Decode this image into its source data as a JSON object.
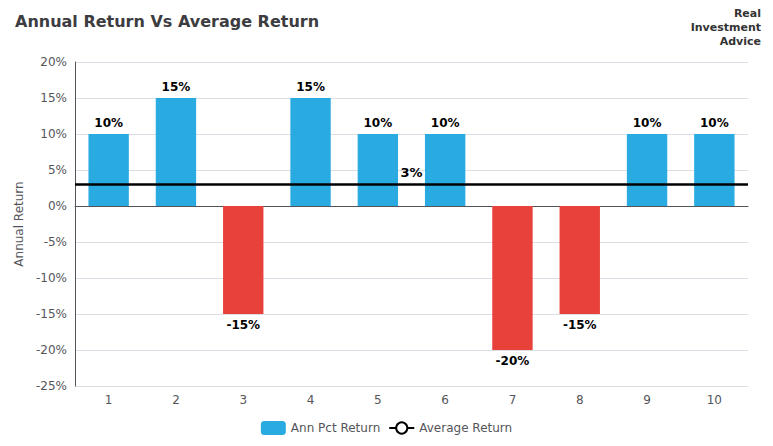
{
  "chart_data": {
    "type": "bar",
    "title": "Annual Return Vs Average Return",
    "ylabel": "Annual Return",
    "categories": [
      1,
      2,
      3,
      4,
      5,
      6,
      7,
      8,
      9,
      10
    ],
    "series": [
      {
        "name": "Ann Pct Return",
        "type": "bar",
        "color": "#29ABE2",
        "colors": [
          "#29ABE2",
          "#29ABE2",
          "#E8413A",
          "#29ABE2",
          "#29ABE2",
          "#29ABE2",
          "#E8413A",
          "#E8413A",
          "#29ABE2",
          "#29ABE2"
        ],
        "values": [
          10,
          15,
          -15,
          15,
          10,
          10,
          -20,
          -15,
          10,
          10
        ],
        "value_labels": [
          "10%",
          "15%",
          "-15%",
          "15%",
          "10%",
          "10%",
          "-20%",
          "-15%",
          "10%",
          "10%"
        ]
      }
    ],
    "average_line": {
      "name": "Average Return",
      "value": 3,
      "label": "3%",
      "color": "black"
    },
    "watermark": "Real\nInvestment\nAdvice",
    "ylim": [
      -25,
      20
    ],
    "yticks": [
      {
        "value": -25,
        "label": "-25%"
      },
      {
        "value": -20,
        "label": "-20%"
      },
      {
        "value": -15,
        "label": "-15%"
      },
      {
        "value": -10,
        "label": "-10%"
      },
      {
        "value": -5,
        "label": "-5%"
      },
      {
        "value": 0,
        "label": "0%"
      },
      {
        "value": 5,
        "label": "5%"
      },
      {
        "value": 10,
        "label": "10%"
      },
      {
        "value": 15,
        "label": "15%"
      },
      {
        "value": 20,
        "label": "20%"
      }
    ],
    "grid": true,
    "legend": "bottom",
    "data_labels": true
  }
}
